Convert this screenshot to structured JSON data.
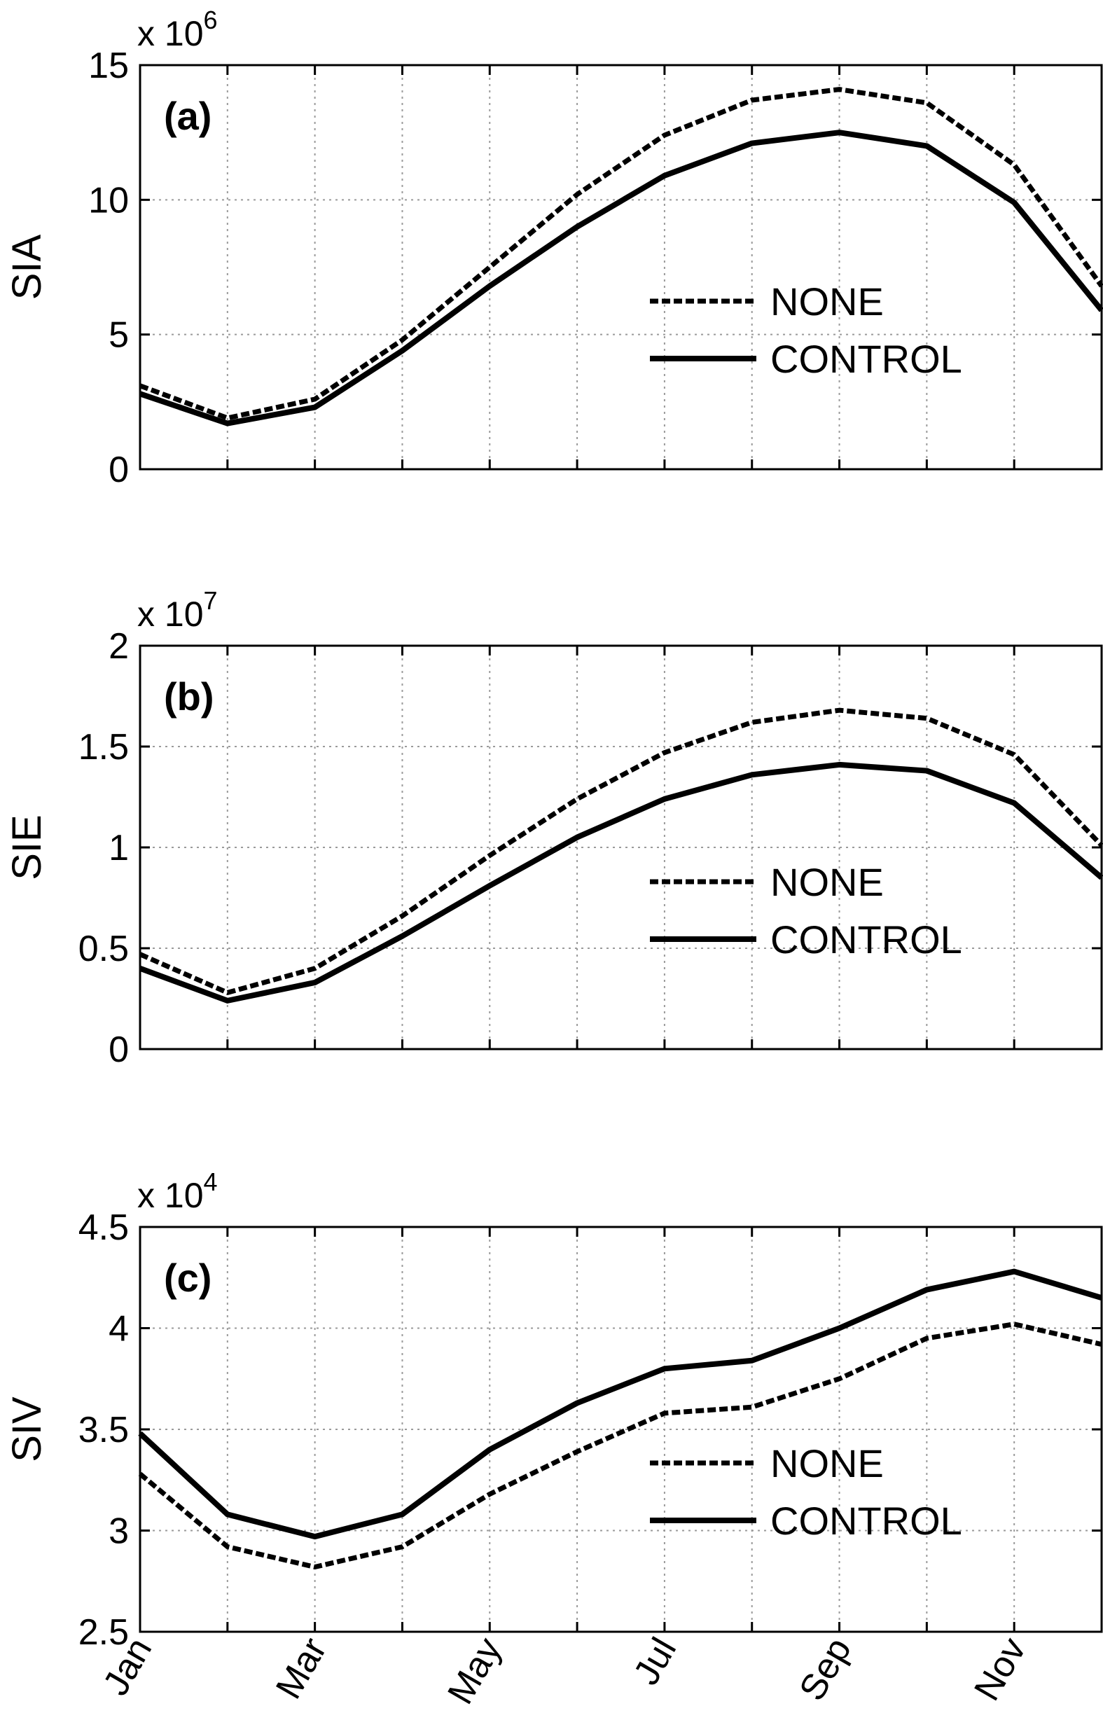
{
  "chart_data": [
    {
      "type": "line",
      "panel": "(a)",
      "ylabel": "SIA",
      "multiplier": "x 10",
      "multiplier_exp": "6",
      "ylim": [
        0,
        15
      ],
      "yticks": [
        "0",
        "5",
        "10",
        "15"
      ],
      "ytick_values": [
        0,
        5,
        10,
        15
      ],
      "x": [
        1,
        2,
        3,
        4,
        5,
        6,
        7,
        8,
        9,
        10,
        11,
        12
      ],
      "xlim": [
        1,
        12
      ],
      "series": [
        {
          "name": "NONE",
          "style": "dashed",
          "values": [
            3.1,
            1.9,
            2.6,
            4.8,
            7.5,
            10.2,
            12.4,
            13.7,
            14.1,
            13.6,
            11.3,
            6.8
          ]
        },
        {
          "name": "CONTROL",
          "style": "solid",
          "values": [
            2.8,
            1.7,
            2.3,
            4.4,
            6.8,
            9.0,
            10.9,
            12.1,
            12.5,
            12.0,
            9.9,
            5.9
          ]
        }
      ],
      "legend_position": "right"
    },
    {
      "type": "line",
      "panel": "(b)",
      "ylabel": "SIE",
      "multiplier": "x 10",
      "multiplier_exp": "7",
      "ylim": [
        0,
        2
      ],
      "yticks": [
        "0",
        "0.5",
        "1",
        "1.5",
        "2"
      ],
      "ytick_values": [
        0,
        0.5,
        1,
        1.5,
        2
      ],
      "x": [
        1,
        2,
        3,
        4,
        5,
        6,
        7,
        8,
        9,
        10,
        11,
        12
      ],
      "xlim": [
        1,
        12
      ],
      "series": [
        {
          "name": "NONE",
          "style": "dashed",
          "values": [
            0.47,
            0.28,
            0.4,
            0.66,
            0.96,
            1.24,
            1.47,
            1.62,
            1.68,
            1.64,
            1.46,
            1.01
          ]
        },
        {
          "name": "CONTROL",
          "style": "solid",
          "values": [
            0.4,
            0.24,
            0.33,
            0.56,
            0.81,
            1.05,
            1.24,
            1.36,
            1.41,
            1.38,
            1.22,
            0.85
          ]
        }
      ],
      "legend_position": "right"
    },
    {
      "type": "line",
      "panel": "(c)",
      "ylabel": "SIV",
      "multiplier": "x 10",
      "multiplier_exp": "4",
      "ylim": [
        2.5,
        4.5
      ],
      "yticks": [
        "2.5",
        "3",
        "3.5",
        "4",
        "4.5"
      ],
      "ytick_values": [
        2.5,
        3,
        3.5,
        4,
        4.5
      ],
      "x": [
        1,
        2,
        3,
        4,
        5,
        6,
        7,
        8,
        9,
        10,
        11,
        12
      ],
      "xlim": [
        1,
        12
      ],
      "series": [
        {
          "name": "NONE",
          "style": "dashed",
          "values": [
            3.28,
            2.92,
            2.82,
            2.92,
            3.18,
            3.39,
            3.58,
            3.61,
            3.75,
            3.95,
            4.02,
            3.92
          ]
        },
        {
          "name": "CONTROL",
          "style": "solid",
          "values": [
            3.48,
            3.08,
            2.97,
            3.08,
            3.4,
            3.63,
            3.8,
            3.84,
            4.0,
            4.19,
            4.28,
            4.15
          ]
        }
      ],
      "legend_position": "right",
      "xticks": [
        "Jan",
        "Mar",
        "May",
        "Jul",
        "Sep",
        "Nov"
      ],
      "xtick_values": [
        1,
        3,
        5,
        7,
        9,
        11
      ]
    }
  ]
}
